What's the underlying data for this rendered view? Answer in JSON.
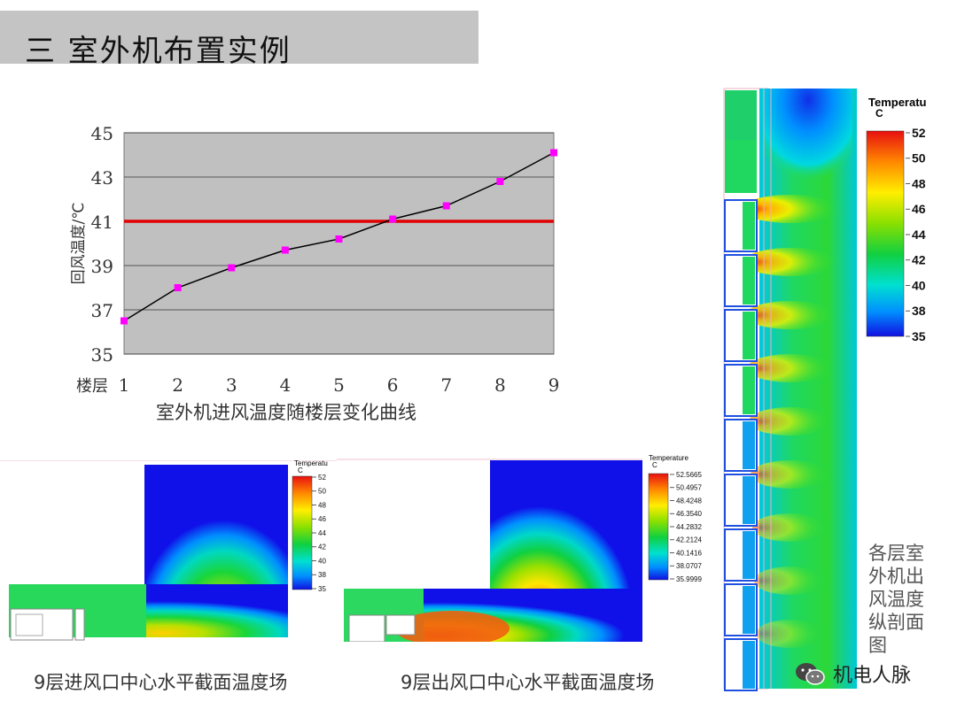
{
  "title": "三 室外机布置实例",
  "chart_data": {
    "type": "line",
    "x": [
      1,
      2,
      3,
      4,
      5,
      6,
      7,
      8,
      9
    ],
    "values": [
      36.5,
      38.0,
      38.9,
      39.7,
      40.2,
      41.1,
      41.7,
      42.8,
      44.1
    ],
    "ylim": [
      35,
      45
    ],
    "yticks": [
      35,
      37,
      39,
      41,
      43,
      45
    ],
    "ylabel": "回风温度/℃",
    "xlabel": "楼层",
    "threshold": 41,
    "grid": true,
    "colors": {
      "line": "#000000",
      "marker": "#ff00ff",
      "threshold": "#e00000",
      "plot_bg": "#c0c0c0"
    }
  },
  "chart_caption": "室外机进风温度随楼层变化曲线",
  "left_panel": {
    "caption": "9层进风口中心水平截面温度场",
    "legend_title": "Temperatu",
    "legend_unit": "C",
    "legend_values": [
      "52",
      "50",
      "48",
      "46",
      "44",
      "42",
      "40",
      "38",
      "35"
    ]
  },
  "mid_panel": {
    "caption": "9层出风口中心水平截面温度场",
    "legend_title": "Temperature",
    "legend_unit": "C",
    "legend_values": [
      "52.5665",
      "50.4957",
      "48.4248",
      "46.3540",
      "44.2832",
      "42.2124",
      "40.1416",
      "38.0707",
      "35.9999"
    ]
  },
  "right_panel": {
    "legend_title": "Temperatu",
    "legend_unit": "C",
    "legend_values": [
      "52",
      "50",
      "48",
      "46",
      "44",
      "42",
      "40",
      "38",
      "35"
    ],
    "caption": "各层室外机出风温度纵剖面图"
  },
  "logo_text": "机电人脉",
  "logo_icon": "wechat-icon"
}
